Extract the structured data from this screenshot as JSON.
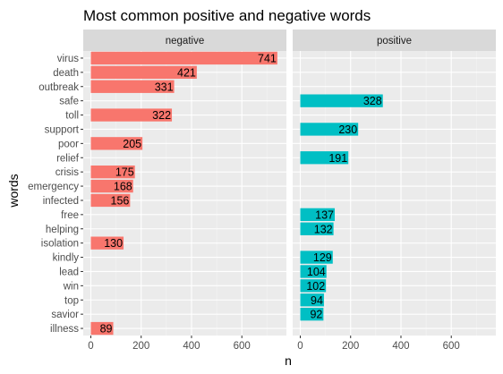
{
  "chart_data": {
    "type": "bar",
    "orientation": "horizontal",
    "title": "Most common positive and negative words",
    "xlabel": "n",
    "ylabel": "words",
    "xlim": [
      0,
      760
    ],
    "xticks": [
      0,
      200,
      400,
      600
    ],
    "grid": true,
    "legend": "none",
    "categories": [
      "virus",
      "death",
      "outbreak",
      "safe",
      "toll",
      "support",
      "poor",
      "relief",
      "crisis",
      "emergency",
      "infected",
      "free",
      "helping",
      "isolation",
      "kindly",
      "lead",
      "win",
      "top",
      "savior",
      "illness"
    ],
    "facets": [
      {
        "name": "negative",
        "color": "#F8766D",
        "values": [
          741,
          421,
          331,
          null,
          322,
          null,
          205,
          null,
          175,
          168,
          156,
          null,
          null,
          130,
          null,
          null,
          null,
          null,
          null,
          89
        ]
      },
      {
        "name": "positive",
        "color": "#00BFC4",
        "values": [
          null,
          null,
          null,
          328,
          null,
          230,
          null,
          191,
          null,
          null,
          null,
          137,
          132,
          null,
          129,
          104,
          102,
          94,
          92,
          null
        ]
      }
    ],
    "colors": {
      "panel_background": "#EBEBEB",
      "strip_background": "#D9D9D9",
      "grid_major": "#FFFFFF"
    }
  }
}
